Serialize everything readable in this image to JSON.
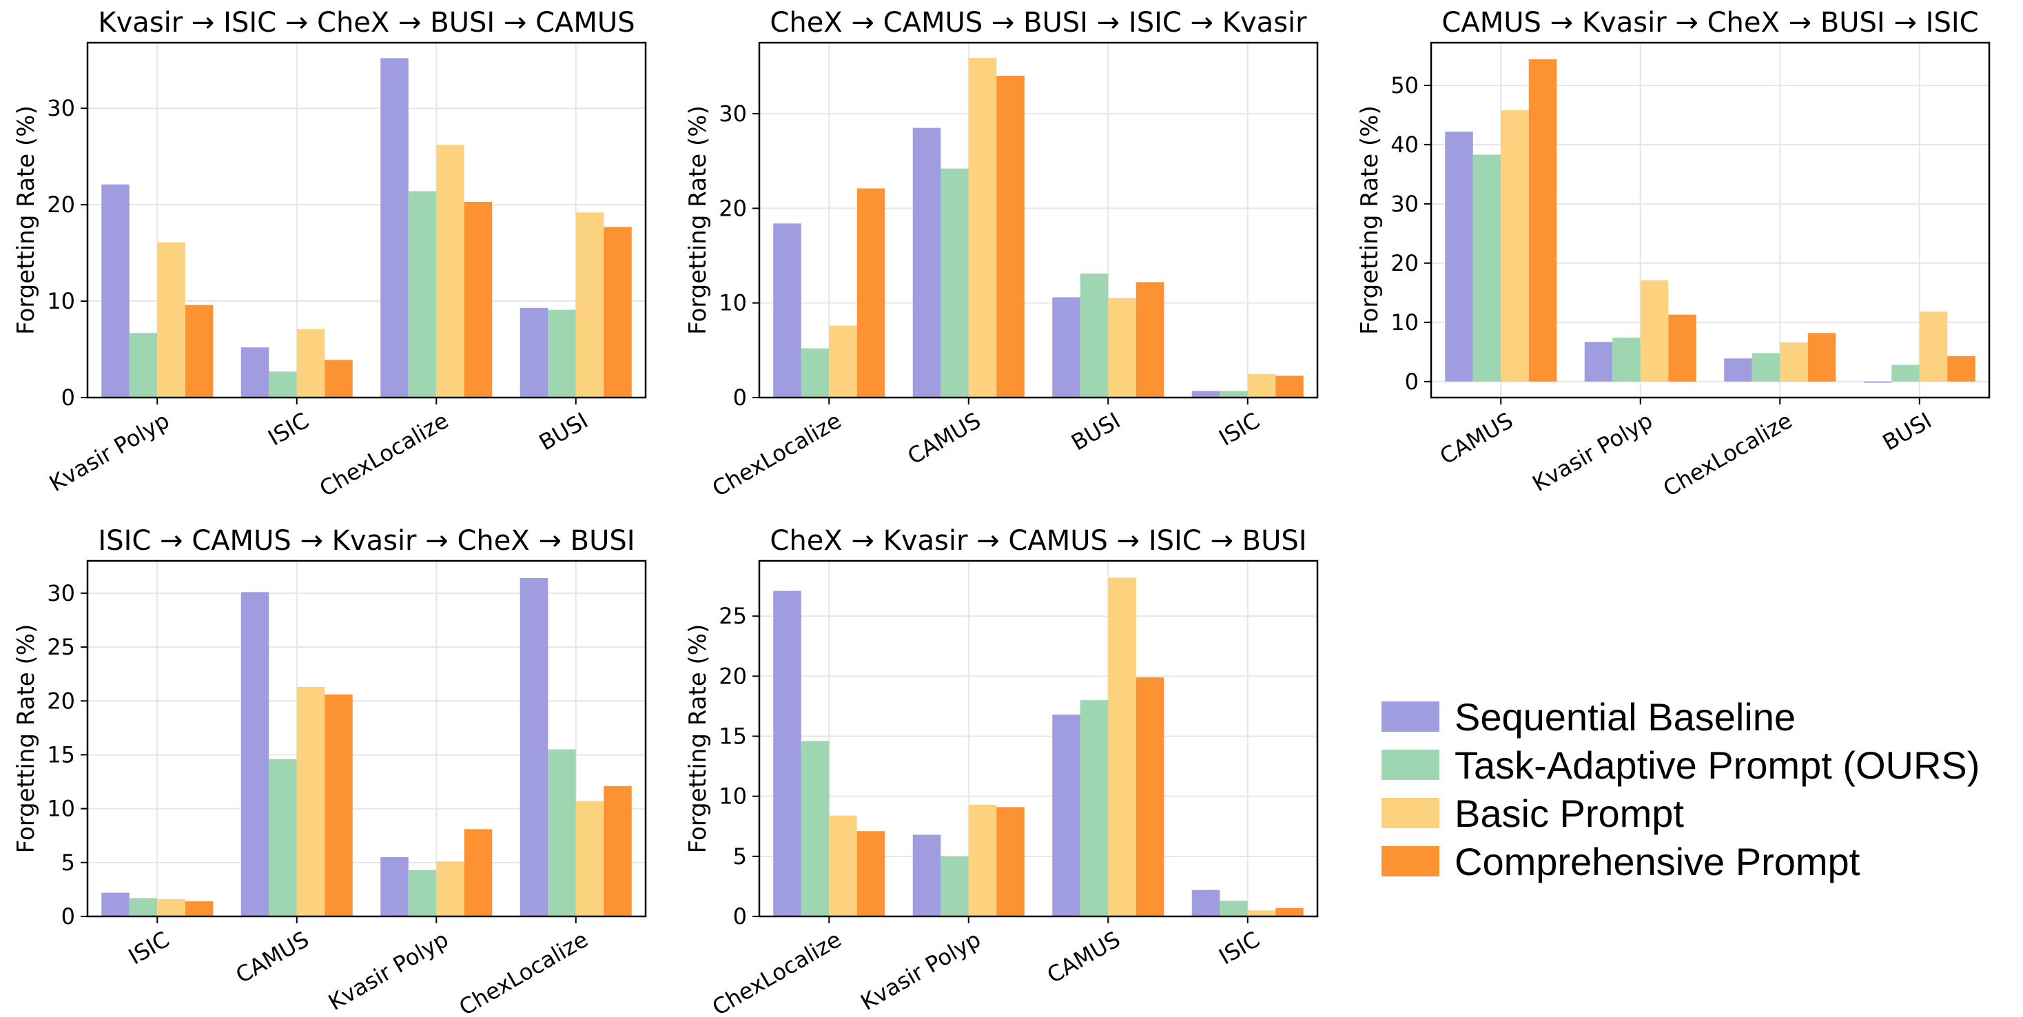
{
  "series": [
    {
      "name": "Sequential Baseline",
      "color": "#9f9ce0"
    },
    {
      "name": "Task-Adaptive Prompt (OURS)",
      "color": "#9dd6b0"
    },
    {
      "name": "Basic Prompt",
      "color": "#fdd27f"
    },
    {
      "name": "Comprehensive Prompt",
      "color": "#fd9233"
    }
  ],
  "chart_data": [
    {
      "type": "bar",
      "title": "Kvasir → ISIC → CheX → BUSI → CAMUS",
      "ylabel": "Forgetting Rate (%)",
      "xlabel": "",
      "categories": [
        "Kvasir Polyp",
        "ISIC",
        "ChexLocalize",
        "BUSI"
      ],
      "ylim": [
        0,
        36.8
      ],
      "yticks": [
        0,
        10,
        20,
        30
      ],
      "series": [
        {
          "name": "Sequential Baseline",
          "values": [
            22.1,
            5.2,
            35.2,
            9.3
          ]
        },
        {
          "name": "Task-Adaptive Prompt (OURS)",
          "values": [
            6.7,
            2.7,
            21.4,
            9.1
          ]
        },
        {
          "name": "Basic Prompt",
          "values": [
            16.1,
            7.1,
            26.2,
            19.2
          ]
        },
        {
          "name": "Comprehensive Prompt",
          "values": [
            9.6,
            3.9,
            20.3,
            17.7
          ]
        }
      ]
    },
    {
      "type": "bar",
      "title": "CheX → CAMUS → BUSI → ISIC → Kvasir",
      "ylabel": "Forgetting Rate (%)",
      "xlabel": "",
      "categories": [
        "ChexLocalize",
        "CAMUS",
        "BUSI",
        "ISIC"
      ],
      "ylim": [
        0,
        37.5
      ],
      "yticks": [
        0,
        10,
        20,
        30
      ],
      "series": [
        {
          "name": "Sequential Baseline",
          "values": [
            18.4,
            28.5,
            10.6,
            0.7
          ]
        },
        {
          "name": "Task-Adaptive Prompt (OURS)",
          "values": [
            5.2,
            24.2,
            13.1,
            0.7
          ]
        },
        {
          "name": "Basic Prompt",
          "values": [
            7.6,
            35.9,
            10.5,
            2.5
          ]
        },
        {
          "name": "Comprehensive Prompt",
          "values": [
            22.1,
            34.0,
            12.2,
            2.3
          ]
        }
      ]
    },
    {
      "type": "bar",
      "title": "CAMUS → Kvasir → CheX → BUSI → ISIC",
      "ylabel": "Forgetting Rate (%)",
      "xlabel": "",
      "categories": [
        "CAMUS",
        "Kvasir Polyp",
        "ChexLocalize",
        "BUSI"
      ],
      "ylim": [
        -2.7,
        57.2
      ],
      "yticks": [
        0,
        10,
        20,
        30,
        40,
        50
      ],
      "series": [
        {
          "name": "Sequential Baseline",
          "values": [
            42.2,
            6.7,
            3.9,
            -0.2
          ]
        },
        {
          "name": "Task-Adaptive Prompt (OURS)",
          "values": [
            38.3,
            7.4,
            4.8,
            2.8
          ]
        },
        {
          "name": "Basic Prompt",
          "values": [
            45.8,
            17.1,
            6.6,
            11.8
          ]
        },
        {
          "name": "Comprehensive Prompt",
          "values": [
            54.4,
            11.3,
            8.2,
            4.3
          ]
        }
      ]
    },
    {
      "type": "bar",
      "title": "ISIC → CAMUS → Kvasir → CheX → BUSI",
      "ylabel": "Forgetting Rate (%)",
      "xlabel": "",
      "categories": [
        "ISIC",
        "CAMUS",
        "Kvasir Polyp",
        "ChexLocalize"
      ],
      "ylim": [
        0,
        33.0
      ],
      "yticks": [
        0,
        5,
        10,
        15,
        20,
        25,
        30
      ],
      "series": [
        {
          "name": "Sequential Baseline",
          "values": [
            2.2,
            30.1,
            5.5,
            31.4
          ]
        },
        {
          "name": "Task-Adaptive Prompt (OURS)",
          "values": [
            1.7,
            14.6,
            4.3,
            15.5
          ]
        },
        {
          "name": "Basic Prompt",
          "values": [
            1.6,
            21.3,
            5.1,
            10.7
          ]
        },
        {
          "name": "Comprehensive Prompt",
          "values": [
            1.4,
            20.6,
            8.1,
            12.1
          ]
        }
      ]
    },
    {
      "type": "bar",
      "title": "CheX → Kvasir → CAMUS → ISIC → BUSI",
      "ylabel": "Forgetting Rate (%)",
      "xlabel": "",
      "categories": [
        "ChexLocalize",
        "Kvasir Polyp",
        "CAMUS",
        "ISIC"
      ],
      "ylim": [
        0,
        29.6
      ],
      "yticks": [
        0,
        5,
        10,
        15,
        20,
        25
      ],
      "series": [
        {
          "name": "Sequential Baseline",
          "values": [
            27.1,
            6.8,
            16.8,
            2.2
          ]
        },
        {
          "name": "Task-Adaptive Prompt (OURS)",
          "values": [
            14.6,
            5.0,
            18.0,
            1.3
          ]
        },
        {
          "name": "Basic Prompt",
          "values": [
            8.4,
            9.3,
            28.2,
            0.5
          ]
        },
        {
          "name": "Comprehensive Prompt",
          "values": [
            7.1,
            9.1,
            19.9,
            0.7
          ]
        }
      ]
    }
  ]
}
